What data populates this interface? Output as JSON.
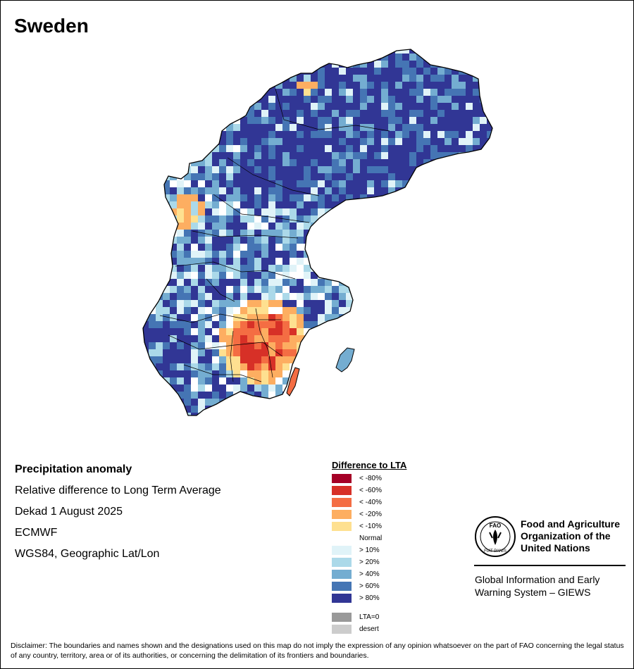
{
  "title": "Sweden",
  "info": {
    "heading": "Precipitation anomaly",
    "line1": "Relative difference to Long Term Average",
    "line2": "Dekad 1 August 2025",
    "line3": "ECMWF",
    "line4": "WGS84, Geographic Lat/Lon"
  },
  "legend": {
    "title": "Difference to LTA",
    "items": [
      {
        "label": "< -80%",
        "color": "#a50026"
      },
      {
        "label": "< -60%",
        "color": "#d73027"
      },
      {
        "label": "< -40%",
        "color": "#f46d43"
      },
      {
        "label": "< -20%",
        "color": "#fdae61"
      },
      {
        "label": "< -10%",
        "color": "#fee090"
      },
      {
        "label": "Normal",
        "color": "#ffffff"
      },
      {
        "label": "> 10%",
        "color": "#e0f3f8"
      },
      {
        "label": "> 20%",
        "color": "#abd9e9"
      },
      {
        "label": "> 40%",
        "color": "#74add1"
      },
      {
        "label": "> 60%",
        "color": "#4575b4"
      },
      {
        "label": "> 80%",
        "color": "#313695"
      }
    ],
    "extra": [
      {
        "label": "LTA=0",
        "color": "#999999"
      },
      {
        "label": "desert",
        "color": "#cccccc"
      }
    ]
  },
  "fao": {
    "logo_text": "FAO",
    "logo_motto": "FIAT PANIS",
    "name_line1": "Food and Agriculture",
    "name_line2": "Organization of the",
    "name_line3": "United Nations",
    "giews_line1": "Global Information and Early",
    "giews_line2": "Warning System – GIEWS"
  },
  "disclaimer": "Disclaimer: The boundaries and names shown and the designations used on this map do not imply the expression of any opinion whatsoever on the part of FAO concerning the legal status of any country, territory, area or of its authorities, or concerning the delimitation of its frontiers and boundaries."
}
